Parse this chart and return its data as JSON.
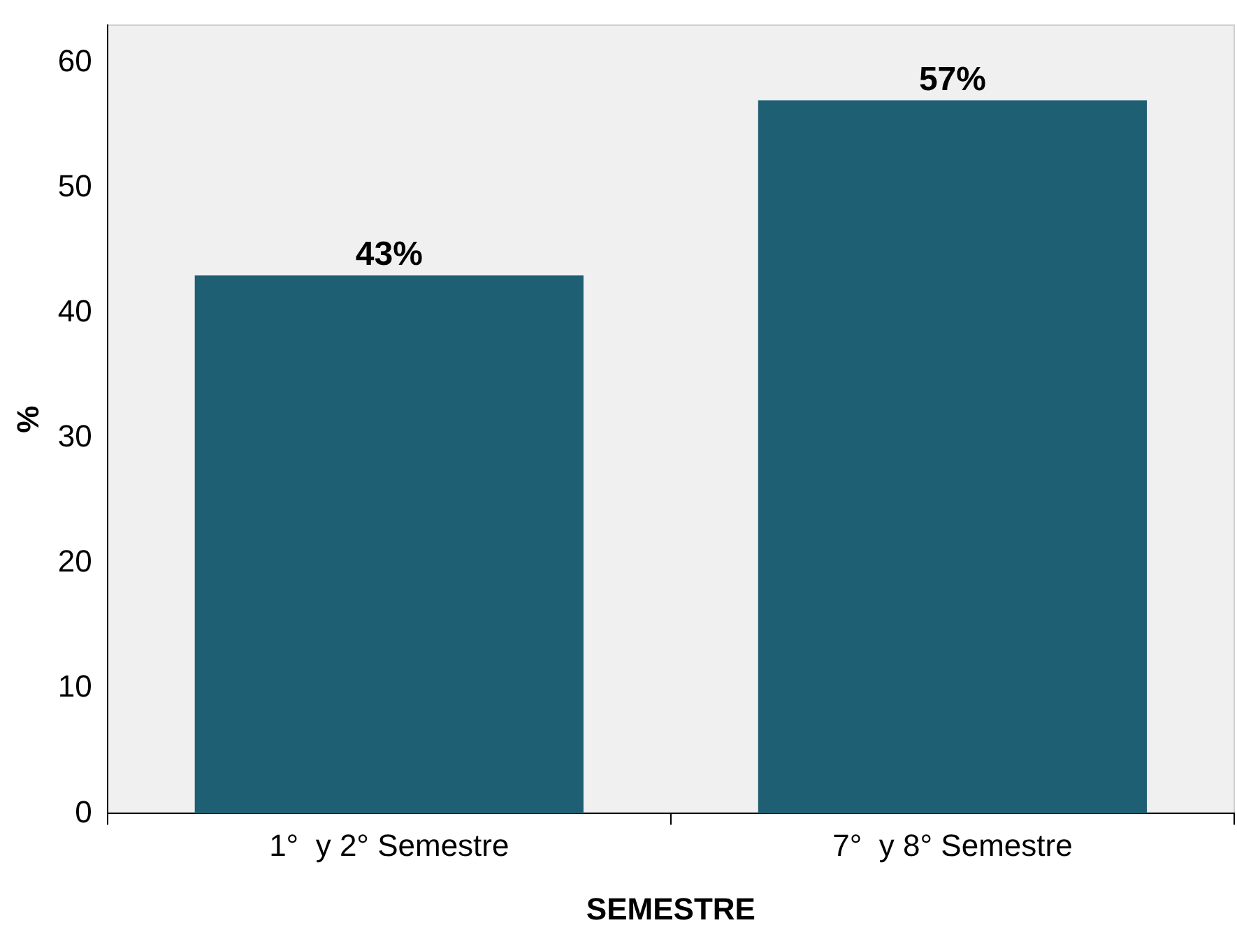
{
  "chart_data": {
    "type": "bar",
    "xlabel": "SEMESTRE",
    "ylabel": "%",
    "categories": [
      "1°  y 2° Semestre",
      "7°  y 8° Semestre"
    ],
    "values": [
      43,
      57
    ],
    "value_labels": [
      "43%",
      "57%"
    ],
    "color": "#1f5f74",
    "ylim": [
      0,
      63
    ],
    "yticks": [
      0,
      10,
      20,
      30,
      40,
      50,
      60
    ],
    "grid": false,
    "legend": false
  }
}
